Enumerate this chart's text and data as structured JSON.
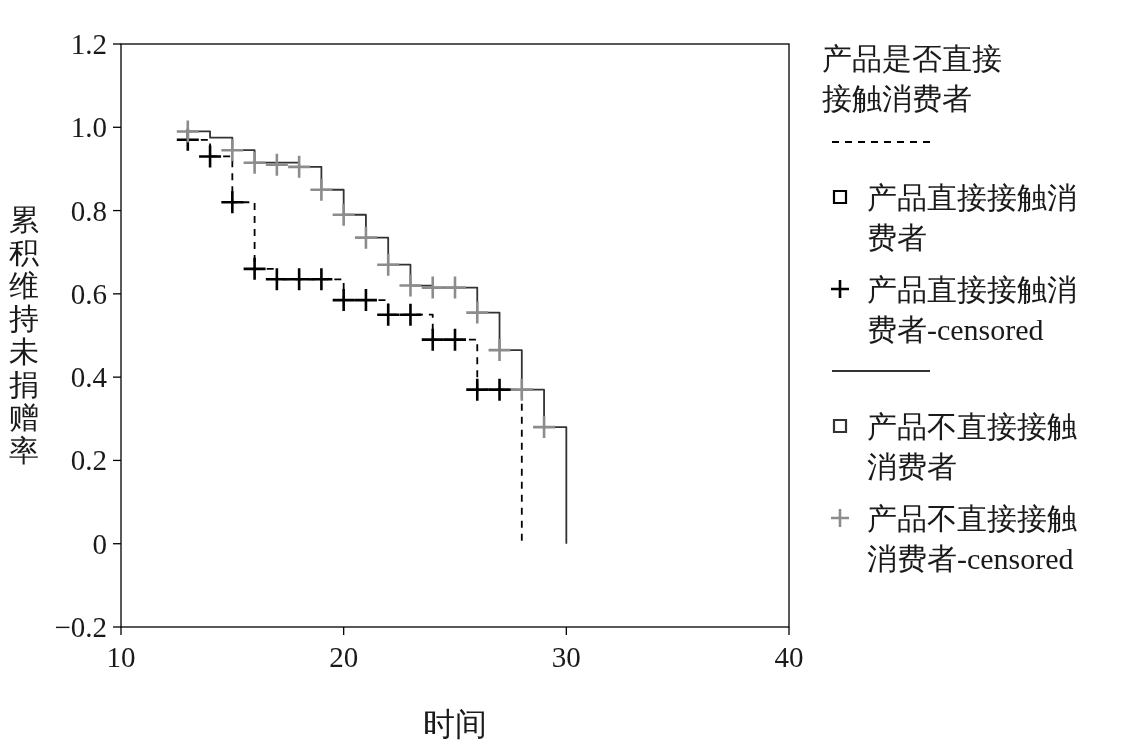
{
  "chart_data": {
    "type": "step",
    "xlabel": "时间",
    "ylabel": "累积维持未捐赠率",
    "legend_title": "产品是否直接接触消费者",
    "xlim": [
      10,
      40
    ],
    "xticks": [
      10,
      20,
      30,
      40
    ],
    "ylim": [
      -0.2,
      1.2
    ],
    "yticks": [
      {
        "value": -0.2,
        "label": "−0.2"
      },
      {
        "value": 0,
        "label": "0"
      },
      {
        "value": 0.2,
        "label": "0.2"
      },
      {
        "value": 0.4,
        "label": "0.4"
      },
      {
        "value": 0.6,
        "label": "0.6"
      },
      {
        "value": 0.8,
        "label": "0.8"
      },
      {
        "value": 1.0,
        "label": "1.0"
      },
      {
        "value": 1.2,
        "label": "1.2"
      }
    ],
    "grid": false,
    "legend": "right",
    "series": [
      {
        "name": "产品直接接触消费者",
        "color": "#000000",
        "line_style": "dashed",
        "x": [
          13,
          14,
          15,
          16,
          17,
          20,
          22,
          24,
          26,
          28
        ],
        "values": [
          0.97,
          0.93,
          0.82,
          0.66,
          0.635,
          0.585,
          0.55,
          0.49,
          0.37,
          0
        ]
      },
      {
        "type": "scatter",
        "name": "产品直接接触消费者-censored",
        "color": "#000000",
        "marker": "cross",
        "x": [
          13,
          14,
          15,
          16,
          17,
          18,
          19,
          20,
          21,
          22,
          23,
          24,
          25,
          26,
          27
        ],
        "values": [
          0.97,
          0.93,
          0.82,
          0.66,
          0.635,
          0.635,
          0.635,
          0.585,
          0.585,
          0.55,
          0.55,
          0.49,
          0.49,
          0.37,
          0.37
        ]
      },
      {
        "name": "产品不直接接触消费者",
        "color": "#333333",
        "line_style": "solid",
        "x": [
          13,
          14,
          15,
          16,
          18,
          19,
          20,
          21,
          22,
          23,
          24,
          26,
          27,
          28,
          29,
          30
        ],
        "values": [
          0.99,
          0.975,
          0.945,
          0.915,
          0.905,
          0.85,
          0.79,
          0.735,
          0.67,
          0.62,
          0.615,
          0.555,
          0.465,
          0.37,
          0.28,
          0
        ]
      },
      {
        "type": "scatter",
        "name": "产品不直接接触消费者-censored",
        "color": "#8c8c8c",
        "marker": "cross",
        "x": [
          13,
          15,
          16,
          17,
          18,
          19,
          20,
          21,
          22,
          23,
          24,
          25,
          26,
          27,
          28,
          29
        ],
        "values": [
          0.99,
          0.945,
          0.915,
          0.91,
          0.905,
          0.85,
          0.79,
          0.735,
          0.67,
          0.62,
          0.615,
          0.615,
          0.555,
          0.465,
          0.37,
          0.28
        ]
      }
    ]
  }
}
